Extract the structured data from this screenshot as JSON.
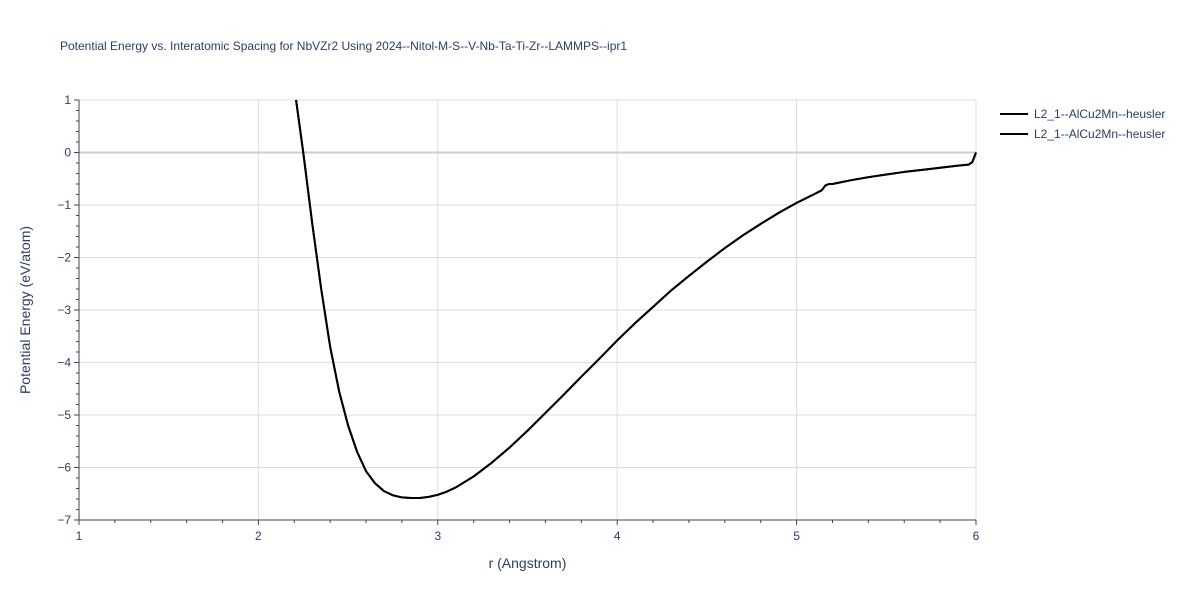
{
  "chart_data": {
    "type": "line",
    "title": "Potential Energy vs. Interatomic Spacing for NbVZr2 Using 2024--Nitol-M-S--V-Nb-Ta-Ti-Zr--LAMMPS--ipr1",
    "xlabel": "r (Angstrom)",
    "ylabel": "Potential Energy (eV/atom)",
    "xlim": [
      1,
      6
    ],
    "ylim": [
      -7,
      1
    ],
    "x_ticks": [
      "1",
      "2",
      "3",
      "4",
      "5",
      "6"
    ],
    "y_ticks": [
      "1",
      "0",
      "−1",
      "−2",
      "−3",
      "−4",
      "−5",
      "−6",
      "−7"
    ],
    "grid": true,
    "legend_position": "top-right",
    "line_color": "#000000",
    "series": [
      {
        "name": "L2_1--AlCu2Mn--heusler",
        "x": [
          2.21,
          2.25,
          2.3,
          2.35,
          2.4,
          2.45,
          2.5,
          2.55,
          2.6,
          2.65,
          2.7,
          2.75,
          2.8,
          2.85,
          2.9,
          2.95,
          3.0,
          3.05,
          3.1,
          3.2,
          3.3,
          3.4,
          3.5,
          3.6,
          3.7,
          3.8,
          3.9,
          4.0,
          4.1,
          4.2,
          4.3,
          4.4,
          4.5,
          4.6,
          4.7,
          4.8,
          4.9,
          5.0,
          5.1,
          5.14,
          5.16,
          5.18,
          5.2,
          5.3,
          5.4,
          5.5,
          5.6,
          5.7,
          5.8,
          5.9,
          5.96,
          5.98,
          6.0
        ],
        "y": [
          1.0,
          0.0,
          -1.35,
          -2.6,
          -3.7,
          -4.55,
          -5.2,
          -5.7,
          -6.07,
          -6.3,
          -6.45,
          -6.53,
          -6.57,
          -6.58,
          -6.58,
          -6.56,
          -6.52,
          -6.46,
          -6.38,
          -6.17,
          -5.91,
          -5.62,
          -5.3,
          -4.96,
          -4.62,
          -4.27,
          -3.93,
          -3.58,
          -3.25,
          -2.94,
          -2.63,
          -2.35,
          -2.08,
          -1.82,
          -1.58,
          -1.36,
          -1.15,
          -0.96,
          -0.79,
          -0.72,
          -0.63,
          -0.6,
          -0.6,
          -0.53,
          -0.47,
          -0.42,
          -0.37,
          -0.33,
          -0.29,
          -0.25,
          -0.23,
          -0.18,
          0.0
        ]
      },
      {
        "name": "L2_1--AlCu2Mn--heusler",
        "x": [
          2.21,
          2.25,
          2.3,
          2.35,
          2.4,
          2.45,
          2.5,
          2.55,
          2.6,
          2.65,
          2.7,
          2.75,
          2.8,
          2.85,
          2.9,
          2.95,
          3.0,
          3.05,
          3.1,
          3.2,
          3.3,
          3.4,
          3.5,
          3.6,
          3.7,
          3.8,
          3.9,
          4.0,
          4.1,
          4.2,
          4.3,
          4.4,
          4.5,
          4.6,
          4.7,
          4.8,
          4.9,
          5.0,
          5.1,
          5.14,
          5.16,
          5.18,
          5.2,
          5.3,
          5.4,
          5.5,
          5.6,
          5.7,
          5.8,
          5.9,
          5.96,
          5.98,
          6.0
        ],
        "y": [
          1.0,
          0.0,
          -1.35,
          -2.6,
          -3.7,
          -4.55,
          -5.2,
          -5.7,
          -6.07,
          -6.3,
          -6.45,
          -6.53,
          -6.57,
          -6.58,
          -6.58,
          -6.56,
          -6.52,
          -6.46,
          -6.38,
          -6.17,
          -5.91,
          -5.62,
          -5.3,
          -4.96,
          -4.62,
          -4.27,
          -3.93,
          -3.58,
          -3.25,
          -2.94,
          -2.63,
          -2.35,
          -2.08,
          -1.82,
          -1.58,
          -1.36,
          -1.15,
          -0.96,
          -0.79,
          -0.72,
          -0.63,
          -0.6,
          -0.6,
          -0.53,
          -0.47,
          -0.42,
          -0.37,
          -0.33,
          -0.29,
          -0.25,
          -0.23,
          -0.18,
          0.0
        ]
      }
    ]
  }
}
